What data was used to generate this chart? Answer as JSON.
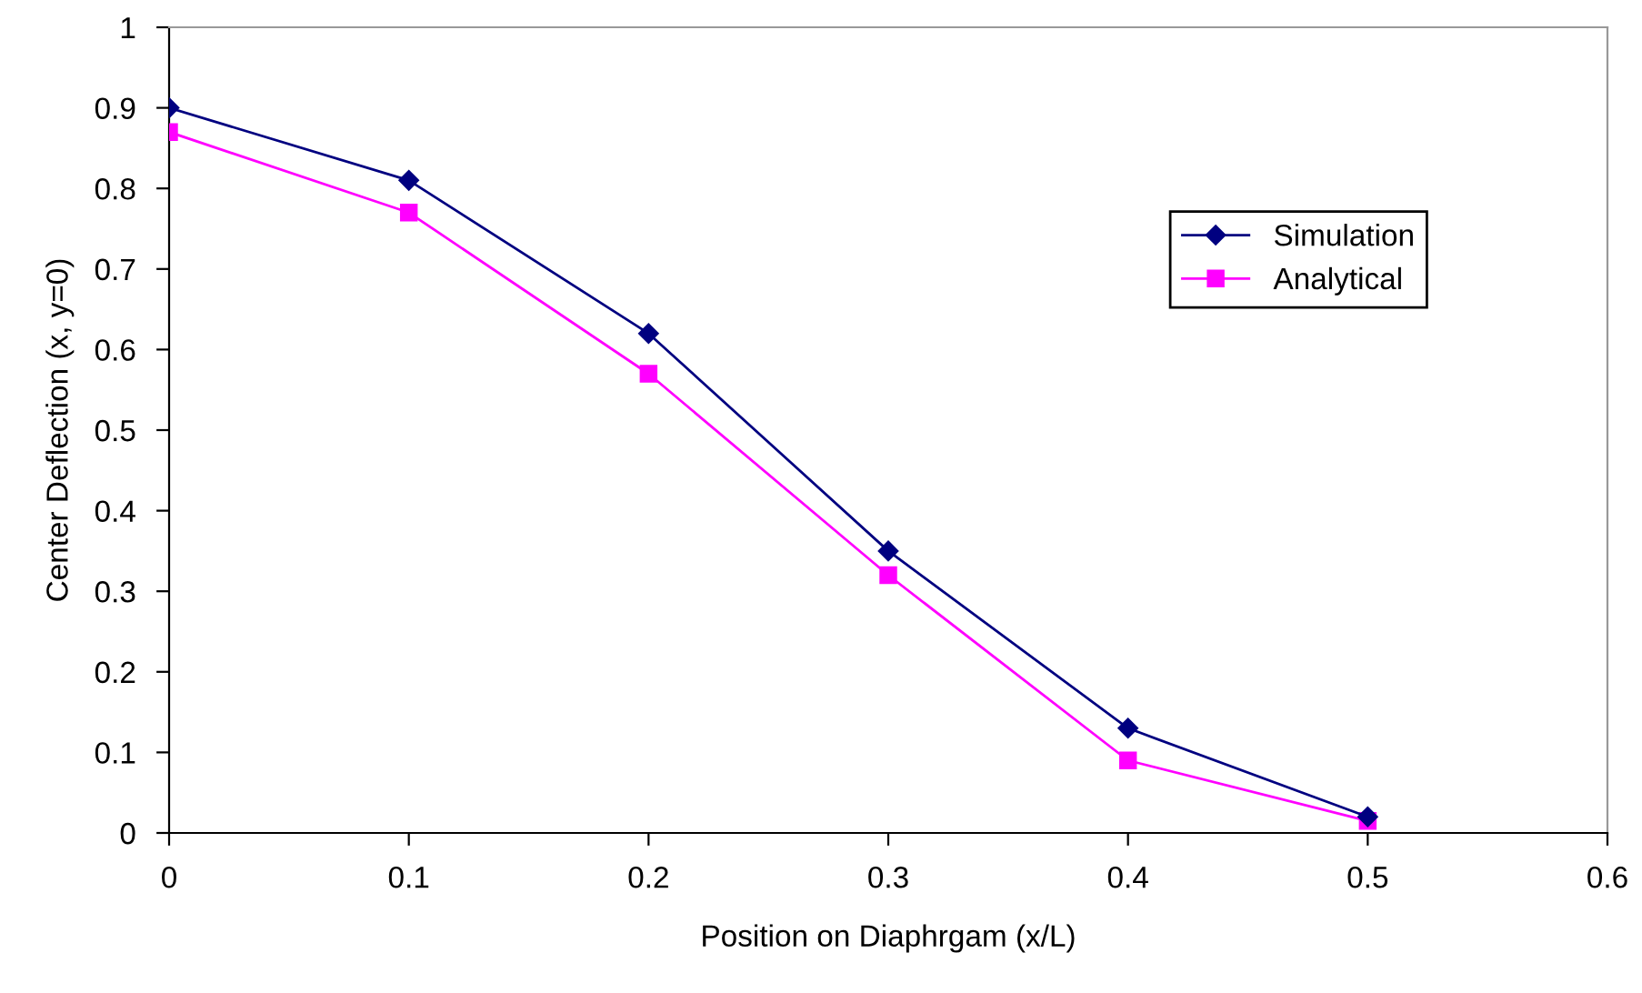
{
  "chart_data": {
    "type": "line",
    "xlabel": "Position on Diaphrgam (x/L)",
    "ylabel": "Center Deflection (x, y=0)",
    "x": [
      0,
      0.1,
      0.2,
      0.3,
      0.4,
      0.5
    ],
    "series": [
      {
        "name": "Simulation",
        "color": "#000080",
        "marker": "diamond",
        "values": [
          0.9,
          0.81,
          0.62,
          0.35,
          0.13,
          0.02
        ]
      },
      {
        "name": "Analytical",
        "color": "#ff00ff",
        "marker": "square",
        "values": [
          0.87,
          0.77,
          0.57,
          0.32,
          0.09,
          0.015
        ]
      }
    ],
    "xlim": [
      0,
      0.6
    ],
    "xticks": [
      0,
      0.1,
      0.2,
      0.3,
      0.4,
      0.5,
      0.6
    ],
    "ylim": [
      0,
      1
    ],
    "yticks": [
      0,
      0.1,
      0.2,
      0.3,
      0.4,
      0.5,
      0.6,
      0.7,
      0.8,
      0.9,
      1
    ],
    "grid": false,
    "legend": "top right",
    "line_style": "solid"
  }
}
